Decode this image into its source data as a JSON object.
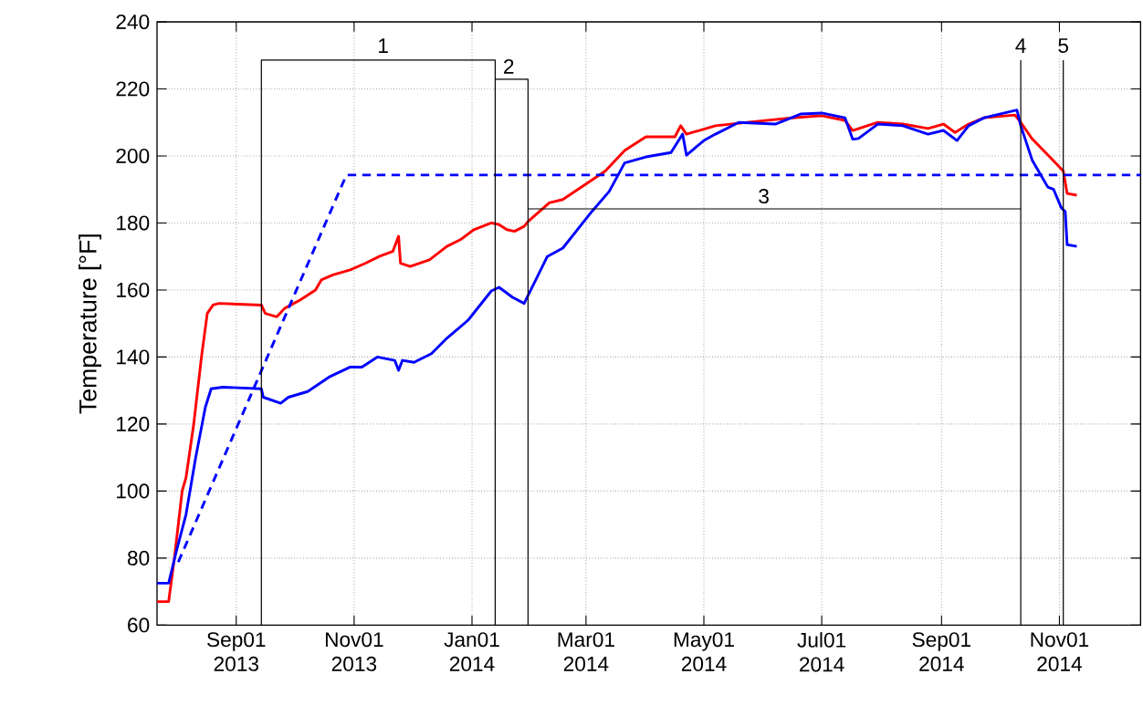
{
  "chart_data": {
    "type": "line",
    "ylabel": "Temperature [°F]",
    "xlim": [
      "2013-07-22",
      "2014-12-13"
    ],
    "ylim": [
      60,
      240
    ],
    "yticks": [
      60,
      80,
      100,
      120,
      140,
      160,
      180,
      200,
      220,
      240
    ],
    "xticks": [
      {
        "value": "2013-09-01",
        "label": "Sep01 2013"
      },
      {
        "value": "2013-11-01",
        "label": "Nov01 2013"
      },
      {
        "value": "2014-01-01",
        "label": "Jan01 2014"
      },
      {
        "value": "2014-03-01",
        "label": "Mar01 2014"
      },
      {
        "value": "2014-05-01",
        "label": "May01 2014"
      },
      {
        "value": "2014-07-01",
        "label": "Jul01 2014"
      },
      {
        "value": "2014-09-01",
        "label": "Sep01 2014"
      },
      {
        "value": "2014-11-01",
        "label": "Nov01 2014"
      }
    ],
    "grid": true,
    "series": [
      {
        "color": "#ff0000",
        "x": [
          "2013-07-22",
          "2013-07-28",
          "2013-07-31",
          "2013-08-04",
          "2013-08-06",
          "2013-08-10",
          "2013-08-14",
          "2013-08-17",
          "2013-08-20",
          "2013-08-23",
          "2013-09-14",
          "2013-09-16",
          "2013-09-22",
          "2013-09-26",
          "2013-10-04",
          "2013-10-12",
          "2013-10-15",
          "2013-10-21",
          "2013-10-30",
          "2013-11-07",
          "2013-11-14",
          "2013-11-21",
          "2013-11-24",
          "2013-11-25",
          "2013-11-30",
          "2013-12-10",
          "2013-12-19",
          "2013-12-26",
          "2014-01-02",
          "2014-01-11",
          "2014-01-15",
          "2014-01-19",
          "2014-01-23",
          "2014-01-28",
          "2014-01-30",
          "2014-02-10",
          "2014-02-17",
          "2014-03-11",
          "2014-03-21",
          "2014-04-01",
          "2014-04-16",
          "2014-04-19",
          "2014-04-22",
          "2014-05-07",
          "2014-05-28",
          "2014-06-17",
          "2014-07-01",
          "2014-07-13",
          "2014-07-17",
          "2014-07-30",
          "2014-08-12",
          "2014-08-25",
          "2014-09-02",
          "2014-09-08",
          "2014-09-15",
          "2014-09-23",
          "2014-10-09",
          "2014-10-12",
          "2014-10-18",
          "2014-10-27",
          "2014-11-03",
          "2014-11-05",
          "2014-11-10"
        ],
        "values": [
          67,
          67,
          80,
          100,
          104,
          120,
          140,
          153,
          155.5,
          156,
          155.5,
          153,
          152,
          154.5,
          157,
          160,
          163,
          164.5,
          166,
          168,
          170,
          171.5,
          176,
          168,
          167,
          169,
          173,
          175,
          178,
          180,
          179.5,
          178,
          177.5,
          179,
          180.4,
          186,
          187,
          195.5,
          201.6,
          205.7,
          205.7,
          209,
          206.5,
          209,
          210.3,
          211.4,
          212,
          210.6,
          207.6,
          210,
          209.5,
          208.2,
          209.5,
          207,
          209.5,
          211.4,
          212.2,
          210,
          205,
          199.7,
          195.5,
          188.8,
          188.3
        ]
      },
      {
        "color": "#0000ff",
        "x": [
          "2013-07-22",
          "2013-07-28",
          "2013-08-01",
          "2013-08-06",
          "2013-08-11",
          "2013-08-16",
          "2013-08-19",
          "2013-08-25",
          "2013-09-14",
          "2013-09-15",
          "2013-09-24",
          "2013-09-28",
          "2013-10-08",
          "2013-10-19",
          "2013-10-30",
          "2013-11-05",
          "2013-11-13",
          "2013-11-22",
          "2013-11-24",
          "2013-11-26",
          "2013-12-02",
          "2013-12-11",
          "2013-12-19",
          "2013-12-30",
          "2014-01-11",
          "2014-01-15",
          "2014-01-22",
          "2014-01-28",
          "2014-02-09",
          "2014-02-17",
          "2014-03-04",
          "2014-03-13",
          "2014-03-21",
          "2014-04-01",
          "2014-04-14",
          "2014-04-20",
          "2014-04-22",
          "2014-05-01",
          "2014-05-07",
          "2014-05-19",
          "2014-06-07",
          "2014-06-20",
          "2014-07-01",
          "2014-07-13",
          "2014-07-17",
          "2014-07-20",
          "2014-07-30",
          "2014-08-12",
          "2014-08-25",
          "2014-09-02",
          "2014-09-09",
          "2014-09-15",
          "2014-09-23",
          "2014-10-10",
          "2014-10-12",
          "2014-10-18",
          "2014-10-26",
          "2014-10-29",
          "2014-11-02",
          "2014-11-04",
          "2014-11-05",
          "2014-11-10"
        ],
        "values": [
          72.5,
          72.5,
          82,
          93,
          110,
          125,
          130.5,
          131,
          130.5,
          128,
          126.2,
          128,
          129.7,
          134,
          137,
          137,
          140,
          139,
          136,
          139,
          138.4,
          141,
          145.6,
          151,
          159.7,
          160.8,
          157.8,
          156,
          170,
          172.5,
          183.4,
          189.4,
          197.9,
          199.7,
          201,
          206.5,
          200.2,
          204.6,
          206.5,
          210,
          209.5,
          212.5,
          212.8,
          211.4,
          205,
          205.2,
          209.5,
          209,
          206.5,
          207.6,
          204.6,
          209,
          211.4,
          213.7,
          209,
          198.6,
          190.7,
          190,
          184.5,
          183.4,
          173.5,
          173
        ]
      },
      {
        "color": "#0000ff",
        "line_style": "dashed",
        "x": [
          "2013-08-02",
          "2013-10-28",
          "2013-11-01",
          "2014-12-13"
        ],
        "values": [
          78.8,
          194.3,
          194.3,
          194.3
        ]
      },
      {
        "color": "#000000",
        "x": [
          "2013-09-14",
          "2013-09-14",
          "2014-01-13",
          "2014-01-13"
        ],
        "values": [
          60,
          228.6,
          228.6,
          60
        ]
      },
      {
        "color": "#000000",
        "x": [
          "2014-01-13",
          "2014-01-30",
          "2014-01-30"
        ],
        "values": [
          222.9,
          222.9,
          60
        ]
      },
      {
        "color": "#000000",
        "x": [
          "2014-01-30",
          "2014-10-12"
        ],
        "values": [
          184.2,
          184.2
        ]
      },
      {
        "color": "#000000",
        "x": [
          "2014-10-12",
          "2014-10-12"
        ],
        "values": [
          60,
          228.6
        ]
      },
      {
        "color": "#000000",
        "x": [
          "2014-11-03",
          "2014-11-03"
        ],
        "values": [
          60,
          228.6
        ]
      }
    ],
    "annotations": [
      {
        "text": "1",
        "x": "2013-11-16",
        "y": 232.9
      },
      {
        "text": "2",
        "x": "2014-01-20",
        "y": 226.7
      },
      {
        "text": "3",
        "x": "2014-06-01",
        "y": 188
      },
      {
        "text": "4",
        "x": "2014-10-12",
        "y": 232.9
      },
      {
        "text": "5",
        "x": "2014-11-03",
        "y": 232.9
      }
    ]
  }
}
